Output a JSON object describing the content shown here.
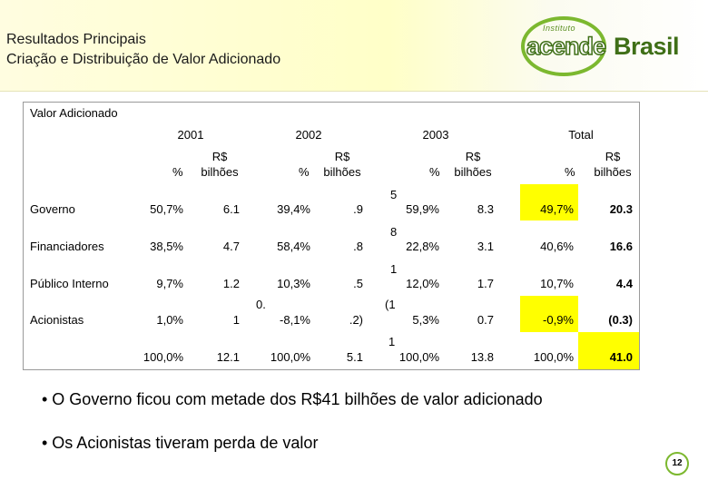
{
  "header": {
    "title": "Resultados Principais",
    "subtitle": "Criação e Distribuição de Valor Adicionado",
    "logo": {
      "small": "Instituto",
      "word1": "acende",
      "word2": "Brasil"
    }
  },
  "table": {
    "caption": "Valor Adicionado",
    "years": [
      "2001",
      "2002",
      "2003",
      "Total"
    ],
    "col_headers": {
      "pct": "%",
      "rs_line1": "R$",
      "rs_line2": "bilhões"
    },
    "rows": [
      {
        "label": "Governo",
        "p2001": "50,7%",
        "v2001": "6.1",
        "p2002": "39,4%",
        "v2002": ".9",
        "frag": "5",
        "p2003": "59,9%",
        "v2003": "8.3",
        "pt": "49,7%",
        "vt": "20.3"
      },
      {
        "label": "Financiadores",
        "p2001": "38,5%",
        "v2001": "4.7",
        "p2002": "58,4%",
        "v2002": ".8",
        "frag": "8",
        "p2003": "22,8%",
        "v2003": "3.1",
        "pt": "40,6%",
        "vt": "16.6"
      },
      {
        "label": "Público Interno",
        "p2001": "9,7%",
        "v2001": "1.2",
        "p2002": "10,3%",
        "v2002": ".5",
        "frag": "1",
        "p2003": "12,0%",
        "v2003": "1.7",
        "pt": "10,7%",
        "vt": "4.4"
      },
      {
        "label": "Acionistas",
        "p2001": "1,0%",
        "v2001": "1",
        "frag0": "0.",
        "p2002": "-8,1%",
        "v2002": ".2)",
        "frag": "(1",
        "p2003": "5,3%",
        "v2003": "0.7",
        "pt": "-0,9%",
        "vt": "(0.3)"
      },
      {
        "label": "",
        "p2001": "100,0%",
        "v2001": "12.1",
        "p2002": "100,0%",
        "v2002": "5.1",
        "frag": "1",
        "p2003": "100,0%",
        "v2003": "13.8",
        "pt": "100,0%",
        "vt": "41.0"
      }
    ]
  },
  "bullets": [
    "• O Governo ficou com metade dos R$41 bilhões de valor adicionado",
    "• Os Acionistas tiveram perda de valor"
  ],
  "page_number": "12",
  "colors": {
    "highlight": "#ffff00",
    "brand_green": "#7cb82f"
  }
}
